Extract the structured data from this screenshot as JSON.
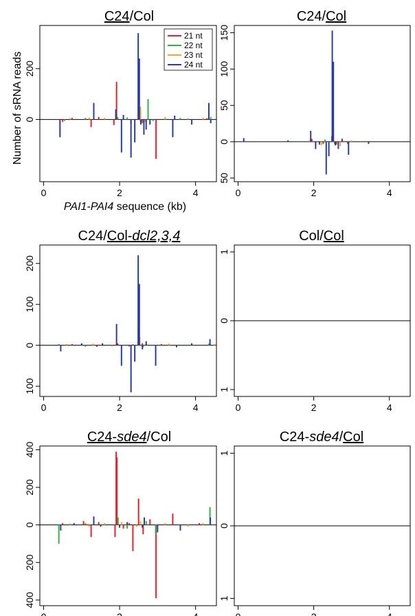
{
  "figure": {
    "ylabel": "Number of sRNA reads",
    "xlabel_italic": "PAI1-PAI4",
    "xlabel_rest": " sequence (kb)"
  },
  "chart_data": [
    {
      "type": "line",
      "title_parts": [
        {
          "text": "C24",
          "underline": true,
          "italic": false
        },
        {
          "text": "/Col",
          "underline": false,
          "italic": false
        }
      ],
      "xlim": [
        -0.1,
        4.55
      ],
      "ylim": [
        -245,
        370
      ],
      "xticks": [
        0,
        2,
        4
      ],
      "yticks": [
        0,
        200
      ],
      "yticklabels": [
        "0",
        "200"
      ],
      "legend": {
        "position": "top-right",
        "entries": [
          "21 nt",
          "22 nt",
          "23 nt",
          "24 nt"
        ]
      },
      "series": [
        {
          "name": "21 nt",
          "color": "#e8202a",
          "spikes": [
            [
              0.5,
              -10
            ],
            [
              0.75,
              6
            ],
            [
              1.25,
              -30
            ],
            [
              1.45,
              10
            ],
            [
              1.85,
              -22
            ],
            [
              1.92,
              148
            ],
            [
              2.3,
              -18
            ],
            [
              2.5,
              35
            ],
            [
              2.6,
              -14
            ],
            [
              2.96,
              -155
            ],
            [
              3.4,
              -8
            ],
            [
              4.3,
              5
            ]
          ]
        },
        {
          "name": "22 nt",
          "color": "#2fb34a",
          "spikes": [
            [
              0.55,
              -6
            ],
            [
              1.1,
              6
            ],
            [
              1.95,
              10
            ],
            [
              2.2,
              8
            ],
            [
              2.55,
              -10
            ],
            [
              2.75,
              80
            ],
            [
              2.88,
              -6
            ],
            [
              3.6,
              6
            ],
            [
              4.4,
              10
            ]
          ]
        },
        {
          "name": "23 nt",
          "color": "#f5a623",
          "spikes": [
            [
              0.7,
              5
            ],
            [
              1.2,
              8
            ],
            [
              1.6,
              6
            ],
            [
              2.05,
              -6
            ],
            [
              2.5,
              110
            ],
            [
              2.55,
              50
            ],
            [
              2.68,
              -10
            ],
            [
              3.2,
              10
            ],
            [
              3.8,
              5
            ],
            [
              4.2,
              6
            ]
          ]
        },
        {
          "name": "24 nt",
          "color": "#2a3d9e",
          "spikes": [
            [
              0.43,
              -70
            ],
            [
              1.32,
              65
            ],
            [
              1.9,
              40
            ],
            [
              2.05,
              -130
            ],
            [
              2.1,
              18
            ],
            [
              2.3,
              -150
            ],
            [
              2.4,
              -90
            ],
            [
              2.49,
              340
            ],
            [
              2.52,
              240
            ],
            [
              2.56,
              -20
            ],
            [
              2.64,
              -60
            ],
            [
              2.7,
              -40
            ],
            [
              2.8,
              -20
            ],
            [
              3.4,
              -70
            ],
            [
              3.45,
              15
            ],
            [
              3.9,
              -20
            ],
            [
              4.35,
              65
            ],
            [
              4.4,
              -15
            ]
          ]
        }
      ]
    },
    {
      "type": "line",
      "title_parts": [
        {
          "text": "C24/",
          "underline": false,
          "italic": false
        },
        {
          "text": "Col",
          "underline": true,
          "italic": false
        }
      ],
      "xlim": [
        -0.1,
        4.55
      ],
      "ylim": [
        -55,
        160
      ],
      "xticks": [
        0,
        2,
        4
      ],
      "yticks": [
        -50,
        0,
        50,
        100,
        150
      ],
      "yticklabels": [
        "50",
        "0",
        "50",
        "100",
        "150"
      ],
      "series": [
        {
          "name": "21 nt",
          "color": "#e8202a",
          "spikes": [
            [
              1.95,
              4
            ],
            [
              2.25,
              -3
            ],
            [
              2.48,
              8
            ],
            [
              2.6,
              -4
            ],
            [
              2.9,
              -3
            ]
          ]
        },
        {
          "name": "22 nt",
          "color": "#2fb34a",
          "spikes": [
            [
              2.05,
              -4
            ],
            [
              2.3,
              3
            ],
            [
              2.55,
              -3
            ],
            [
              2.75,
              4
            ]
          ]
        },
        {
          "name": "23 nt",
          "color": "#f5a623",
          "spikes": [
            [
              1.9,
              3
            ],
            [
              2.2,
              -5
            ],
            [
              2.5,
              22
            ],
            [
              2.52,
              10
            ],
            [
              2.7,
              -6
            ],
            [
              3.0,
              2
            ]
          ]
        },
        {
          "name": "24 nt",
          "color": "#2a3d9e",
          "spikes": [
            [
              0.15,
              5
            ],
            [
              1.32,
              2
            ],
            [
              1.92,
              15
            ],
            [
              2.05,
              -10
            ],
            [
              2.15,
              -4
            ],
            [
              2.33,
              -45
            ],
            [
              2.4,
              -20
            ],
            [
              2.49,
              153
            ],
            [
              2.52,
              110
            ],
            [
              2.57,
              -5
            ],
            [
              2.65,
              -10
            ],
            [
              2.75,
              4
            ],
            [
              2.92,
              -18
            ],
            [
              3.45,
              -3
            ]
          ]
        }
      ]
    },
    {
      "type": "line",
      "title_parts": [
        {
          "text": "C24/",
          "underline": false,
          "italic": false
        },
        {
          "text": "Col-",
          "underline": true,
          "italic": false
        },
        {
          "text": "dcl2,3,4",
          "underline": true,
          "italic": true
        }
      ],
      "xlim": [
        -0.1,
        4.55
      ],
      "ylim": [
        -125,
        245
      ],
      "xticks": [
        0,
        2,
        4
      ],
      "yticks": [
        -100,
        0,
        100,
        200
      ],
      "yticklabels": [
        "100",
        "0",
        "100",
        "200"
      ],
      "series": [
        {
          "name": "21 nt",
          "color": "#e8202a",
          "spikes": [
            [
              0.75,
              3
            ],
            [
              1.4,
              -4
            ],
            [
              1.95,
              5
            ],
            [
              2.25,
              -3
            ],
            [
              2.6,
              5
            ],
            [
              3.1,
              3
            ]
          ]
        },
        {
          "name": "22 nt",
          "color": "#2fb34a",
          "spikes": [
            [
              0.4,
              3
            ],
            [
              1.1,
              -4
            ],
            [
              2.35,
              3
            ],
            [
              2.62,
              -5
            ],
            [
              4.35,
              4
            ]
          ]
        },
        {
          "name": "23 nt",
          "color": "#f5a623",
          "spikes": [
            [
              0.6,
              3
            ],
            [
              1.3,
              4
            ],
            [
              1.8,
              -3
            ],
            [
              2.49,
              40
            ],
            [
              2.53,
              20
            ],
            [
              3.3,
              4
            ],
            [
              4.5,
              3
            ]
          ]
        },
        {
          "name": "24 nt",
          "color": "#2a3d9e",
          "spikes": [
            [
              0.45,
              -15
            ],
            [
              1.0,
              5
            ],
            [
              1.55,
              5
            ],
            [
              1.92,
              52
            ],
            [
              2.05,
              -50
            ],
            [
              2.3,
              -115
            ],
            [
              2.4,
              -40
            ],
            [
              2.49,
              220
            ],
            [
              2.52,
              150
            ],
            [
              2.6,
              -10
            ],
            [
              2.7,
              10
            ],
            [
              2.95,
              -50
            ],
            [
              3.5,
              -5
            ],
            [
              3.9,
              5
            ],
            [
              4.38,
              15
            ]
          ]
        }
      ]
    },
    {
      "type": "line",
      "title_parts": [
        {
          "text": "Col/",
          "underline": false,
          "italic": false
        },
        {
          "text": "Col",
          "underline": true,
          "italic": false
        }
      ],
      "xlim": [
        -0.1,
        4.55
      ],
      "ylim": [
        -1.1,
        1.1
      ],
      "xticks": [
        0,
        2,
        4
      ],
      "yticks": [
        -1,
        0,
        1
      ],
      "yticklabels": [
        "1",
        "0",
        "1"
      ],
      "series": []
    },
    {
      "type": "line",
      "title_parts": [
        {
          "text": "C24-",
          "underline": true,
          "italic": false
        },
        {
          "text": "sde4",
          "underline": true,
          "italic": true
        },
        {
          "text": "/Col",
          "underline": false,
          "italic": false
        }
      ],
      "xlim": [
        -0.1,
        4.55
      ],
      "ylim": [
        -430,
        420
      ],
      "xticks": [
        0,
        2,
        4
      ],
      "yticks": [
        -400,
        -200,
        0,
        200,
        400
      ],
      "yticklabels": [
        "400",
        "200",
        "0",
        "200",
        "400"
      ],
      "series": [
        {
          "name": "21 nt",
          "color": "#e8202a",
          "spikes": [
            [
              0.5,
              10
            ],
            [
              1.05,
              20
            ],
            [
              1.25,
              -65
            ],
            [
              1.45,
              15
            ],
            [
              1.88,
              -65
            ],
            [
              1.91,
              390
            ],
            [
              1.93,
              360
            ],
            [
              2.1,
              -20
            ],
            [
              2.25,
              10
            ],
            [
              2.35,
              -140
            ],
            [
              2.5,
              140
            ],
            [
              2.62,
              -50
            ],
            [
              2.8,
              30
            ],
            [
              2.96,
              -390
            ],
            [
              3.4,
              60
            ],
            [
              4.1,
              10
            ]
          ]
        },
        {
          "name": "22 nt",
          "color": "#2fb34a",
          "spikes": [
            [
              0.4,
              -100
            ],
            [
              1.1,
              10
            ],
            [
              1.96,
              40
            ],
            [
              2.2,
              -20
            ],
            [
              2.7,
              20
            ],
            [
              2.95,
              -50
            ],
            [
              4.38,
              95
            ]
          ]
        },
        {
          "name": "23 nt",
          "color": "#f5a623",
          "spikes": [
            [
              0.7,
              8
            ],
            [
              1.2,
              -10
            ],
            [
              1.6,
              10
            ],
            [
              2.05,
              15
            ],
            [
              2.45,
              -10
            ],
            [
              2.55,
              20
            ],
            [
              3.2,
              10
            ],
            [
              3.8,
              -8
            ],
            [
              4.2,
              10
            ]
          ]
        },
        {
          "name": "24 nt",
          "color": "#2a3d9e",
          "spikes": [
            [
              0.45,
              -30
            ],
            [
              0.8,
              10
            ],
            [
              1.32,
              45
            ],
            [
              1.5,
              -10
            ],
            [
              2.0,
              -15
            ],
            [
              2.2,
              15
            ],
            [
              2.6,
              -15
            ],
            [
              2.65,
              40
            ],
            [
              3.0,
              -40
            ],
            [
              3.6,
              -30
            ],
            [
              4.39,
              40
            ]
          ]
        }
      ]
    },
    {
      "type": "line",
      "title_parts": [
        {
          "text": "C24-",
          "underline": false,
          "italic": false
        },
        {
          "text": "sde4",
          "underline": false,
          "italic": true
        },
        {
          "text": "/",
          "underline": false,
          "italic": false
        },
        {
          "text": "Col",
          "underline": true,
          "italic": false
        }
      ],
      "xlim": [
        -0.1,
        4.55
      ],
      "ylim": [
        -1.1,
        1.1
      ],
      "xticks": [
        0,
        2,
        4
      ],
      "yticks": [
        -1,
        0,
        1
      ],
      "yticklabels": [
        "1",
        "0",
        "1"
      ],
      "series": []
    }
  ]
}
